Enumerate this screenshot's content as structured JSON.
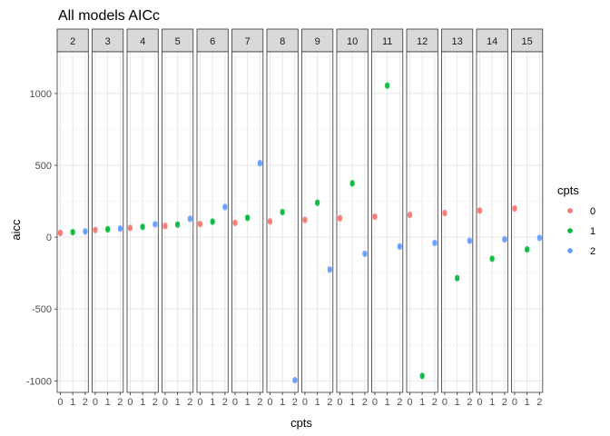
{
  "chart_data": {
    "type": "scatter",
    "title": "All models AICc",
    "xlabel": "cpts",
    "ylabel": "aicc",
    "ylim": [
      -1080,
      1290
    ],
    "y_ticks": [
      -1000,
      -500,
      0,
      500,
      1000
    ],
    "y_tick_labels": [
      "-1000",
      "-500",
      "0",
      "500",
      "1000"
    ],
    "x_categories": [
      "0",
      "1",
      "2"
    ],
    "facet_label_prefix": "",
    "facets": [
      {
        "label": "2",
        "values": [
          30,
          35,
          40
        ]
      },
      {
        "label": "3",
        "values": [
          50,
          55,
          60
        ]
      },
      {
        "label": "4",
        "values": [
          65,
          72,
          90
        ]
      },
      {
        "label": "5",
        "values": [
          78,
          88,
          128
        ]
      },
      {
        "label": "6",
        "values": [
          92,
          108,
          210
        ]
      },
      {
        "label": "7",
        "values": [
          100,
          135,
          515
        ]
      },
      {
        "label": "8",
        "values": [
          110,
          175,
          -995
        ]
      },
      {
        "label": "9",
        "values": [
          120,
          240,
          -225
        ]
      },
      {
        "label": "10",
        "values": [
          132,
          375,
          -115
        ]
      },
      {
        "label": "11",
        "values": [
          143,
          1055,
          -65
        ]
      },
      {
        "label": "12",
        "values": [
          155,
          -965,
          -40
        ]
      },
      {
        "label": "13",
        "values": [
          168,
          -285,
          -25
        ]
      },
      {
        "label": "14",
        "values": [
          185,
          -150,
          -15
        ]
      },
      {
        "label": "15",
        "values": [
          200,
          -85,
          -5
        ]
      }
    ],
    "legend": {
      "title": "cpts",
      "entries": [
        {
          "label": "0",
          "color": "#F8766D"
        },
        {
          "label": "1",
          "color": "#00BA38"
        },
        {
          "label": "2",
          "color": "#619CFF"
        }
      ],
      "position": "right"
    }
  }
}
